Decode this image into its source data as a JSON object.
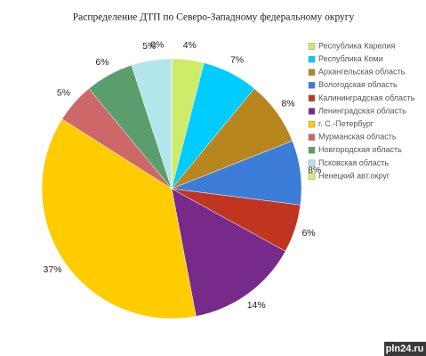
{
  "chart_data": {
    "type": "pie",
    "title": "Распределение ДТП по Северо-Западному федеральному округу",
    "categories": [
      "Республика Карелия",
      "Республика Коми",
      "Архангельская область",
      "Вологодская область",
      "Калининградская область",
      "Ленинградская область",
      "г. С.-Петербург",
      "Мурманская область",
      "Новгородская область",
      "Псковская область",
      "Ненецкий авт.округ"
    ],
    "values": [
      4,
      7,
      8,
      8,
      6,
      14,
      37,
      5,
      6,
      5,
      0
    ],
    "value_labels": [
      "4%",
      "7%",
      "8%",
      "8%",
      "6%",
      "14%",
      "37%",
      "5%",
      "6%",
      "5%",
      "0%"
    ],
    "colors": [
      "#ccec6a",
      "#00ccff",
      "#b8861e",
      "#3b7dd8",
      "#c0351f",
      "#772a8a",
      "#ffcc00",
      "#cc6868",
      "#5a9e6e",
      "#b3e6ea",
      "#d4f06a"
    ],
    "legend": "right"
  },
  "watermark": "pln24.ru"
}
